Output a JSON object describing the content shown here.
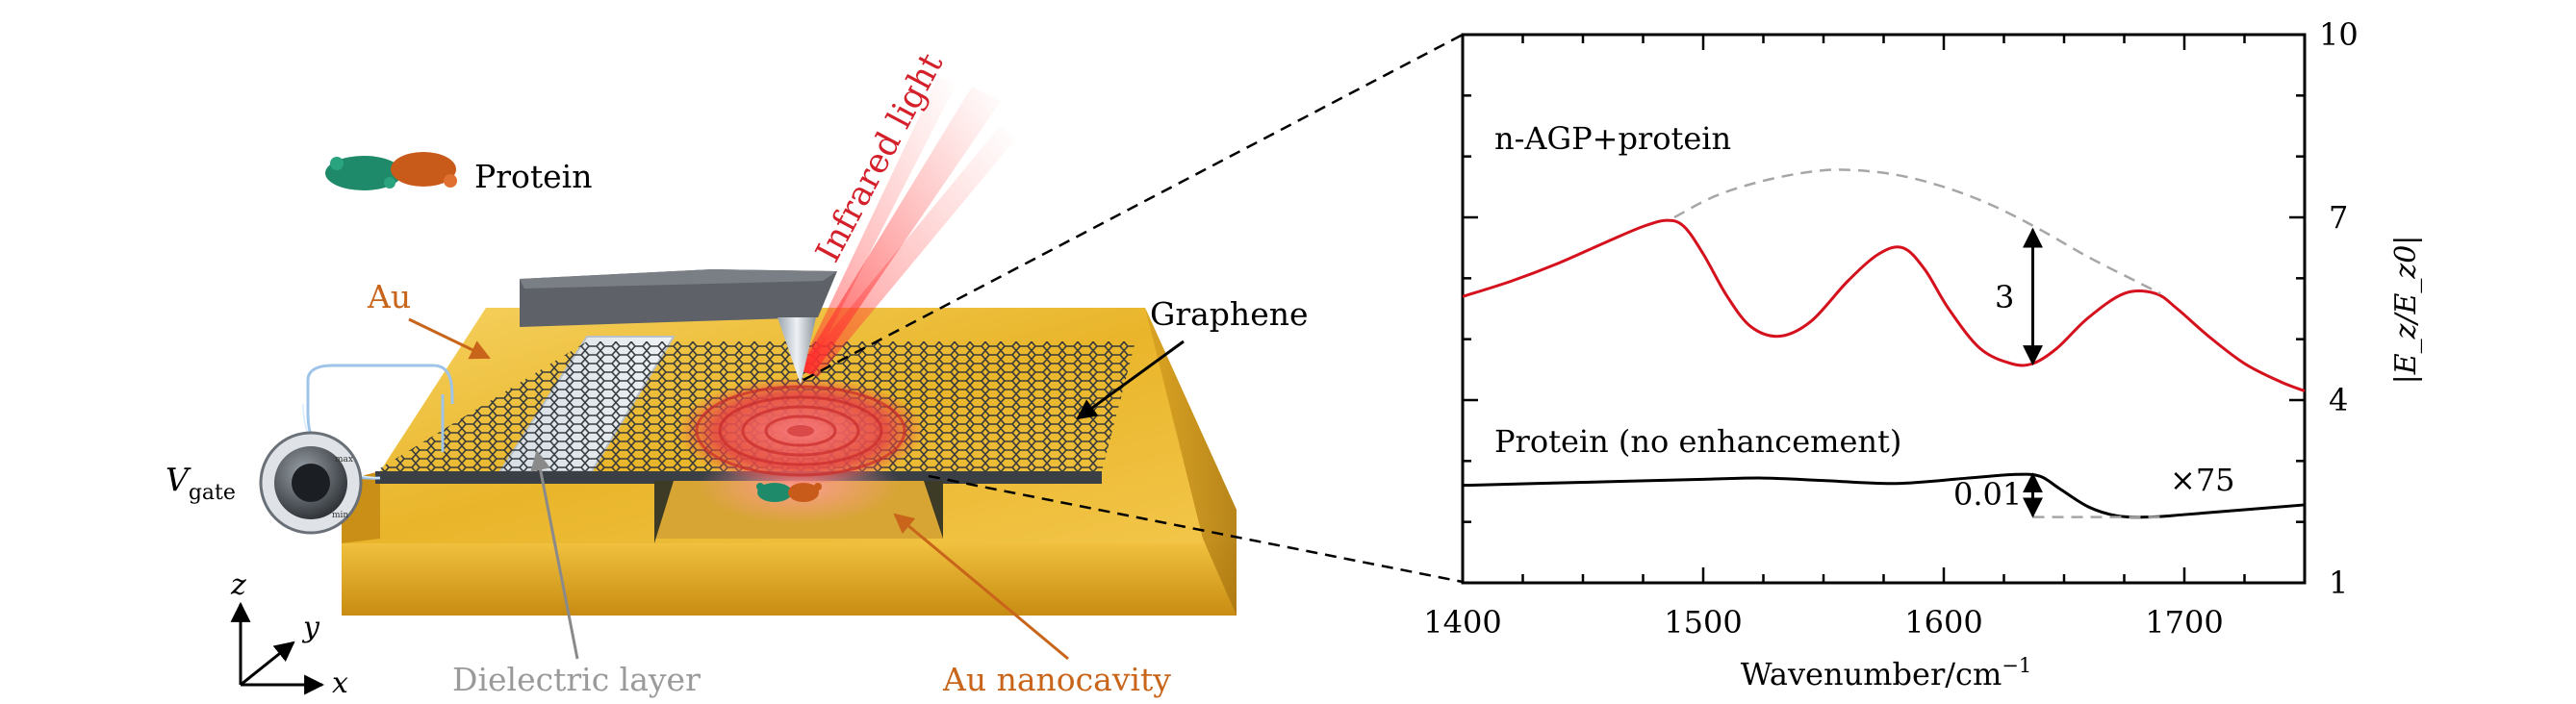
{
  "labels": {
    "protein": "Protein",
    "infrared_light": "Infrared light",
    "au": "Au",
    "graphene": "Graphene",
    "v_main": "V",
    "v_sub": "gate",
    "dielectric_layer": "Dielectric layer",
    "au_nanocavity": "Au nanocavity",
    "knob_max": "max",
    "knob_min": "min",
    "axis_z": "z",
    "axis_y": "y",
    "axis_x": "x"
  },
  "colors": {
    "gold": "#e9b52a",
    "graphene": "#3a3f46",
    "plasmon_red": "#e33a3a",
    "au_label": "#c8651a",
    "dielectric_label": "#9a9a9a",
    "ir_label": "#d3202a",
    "curve_red": "#d4111c",
    "curve_black": "#000000",
    "dashed_gray": "#a6a6a6"
  },
  "chart_data": {
    "type": "line",
    "xlabel": "Wavenumber/cm",
    "xlabel_sup": "−1",
    "ylabel": "|E_z/E_z0|",
    "xlim": [
      1400,
      1750
    ],
    "ylim": [
      1,
      10
    ],
    "xticks": [
      "1400",
      "1500",
      "1600",
      "1700"
    ],
    "yticks": [
      "1",
      "4",
      "7",
      "10"
    ],
    "annotations": {
      "n_agp": "n-AGP+protein",
      "protein_no_enh": "Protein (no enhancement)",
      "three": "3",
      "zero_oh_one": "0.01",
      "times75": "×75"
    },
    "series": [
      {
        "name": "n-AGP+protein",
        "color": "#d4111c",
        "x": [
          1400,
          1420,
          1440,
          1460,
          1475,
          1485,
          1492,
          1500,
          1510,
          1520,
          1532,
          1545,
          1560,
          1573,
          1583,
          1592,
          1602,
          1615,
          1628,
          1637,
          1647,
          1660,
          1675,
          1688,
          1697,
          1710,
          1725,
          1740,
          1750
        ],
        "y": [
          5.7,
          5.95,
          6.25,
          6.6,
          6.85,
          6.95,
          6.85,
          6.4,
          5.7,
          5.2,
          5.05,
          5.3,
          5.95,
          6.4,
          6.5,
          6.15,
          5.5,
          4.85,
          4.6,
          4.6,
          4.85,
          5.35,
          5.75,
          5.75,
          5.5,
          5.05,
          4.6,
          4.3,
          4.15
        ]
      },
      {
        "name": "Protein (no enhancement)",
        "color": "#000000",
        "x": [
          1400,
          1450,
          1500,
          1525,
          1550,
          1580,
          1610,
          1630,
          1640,
          1648,
          1660,
          1672,
          1685,
          1700,
          1725,
          1750
        ],
        "y": [
          2.6,
          2.65,
          2.7,
          2.72,
          2.68,
          2.63,
          2.72,
          2.78,
          2.75,
          2.55,
          2.25,
          2.1,
          2.08,
          2.12,
          2.2,
          2.28
        ]
      },
      {
        "name": "envelope",
        "color": "#a6a6a6",
        "dashed": true,
        "x": [
          1488,
          1505,
          1525,
          1545,
          1560,
          1580,
          1600,
          1620,
          1640,
          1660,
          1680,
          1690
        ],
        "y": [
          7.0,
          7.35,
          7.6,
          7.75,
          7.78,
          7.7,
          7.5,
          7.2,
          6.8,
          6.35,
          5.95,
          5.75
        ]
      },
      {
        "name": "baseline",
        "color": "#a6a6a6",
        "dashed": true,
        "x": [
          1637,
          1690
        ],
        "y": [
          2.08,
          2.08
        ]
      }
    ],
    "arrows": [
      {
        "x": 1637,
        "y1": 4.6,
        "y2": 6.8
      },
      {
        "x": 1637,
        "y1": 2.1,
        "y2": 2.78
      }
    ]
  }
}
